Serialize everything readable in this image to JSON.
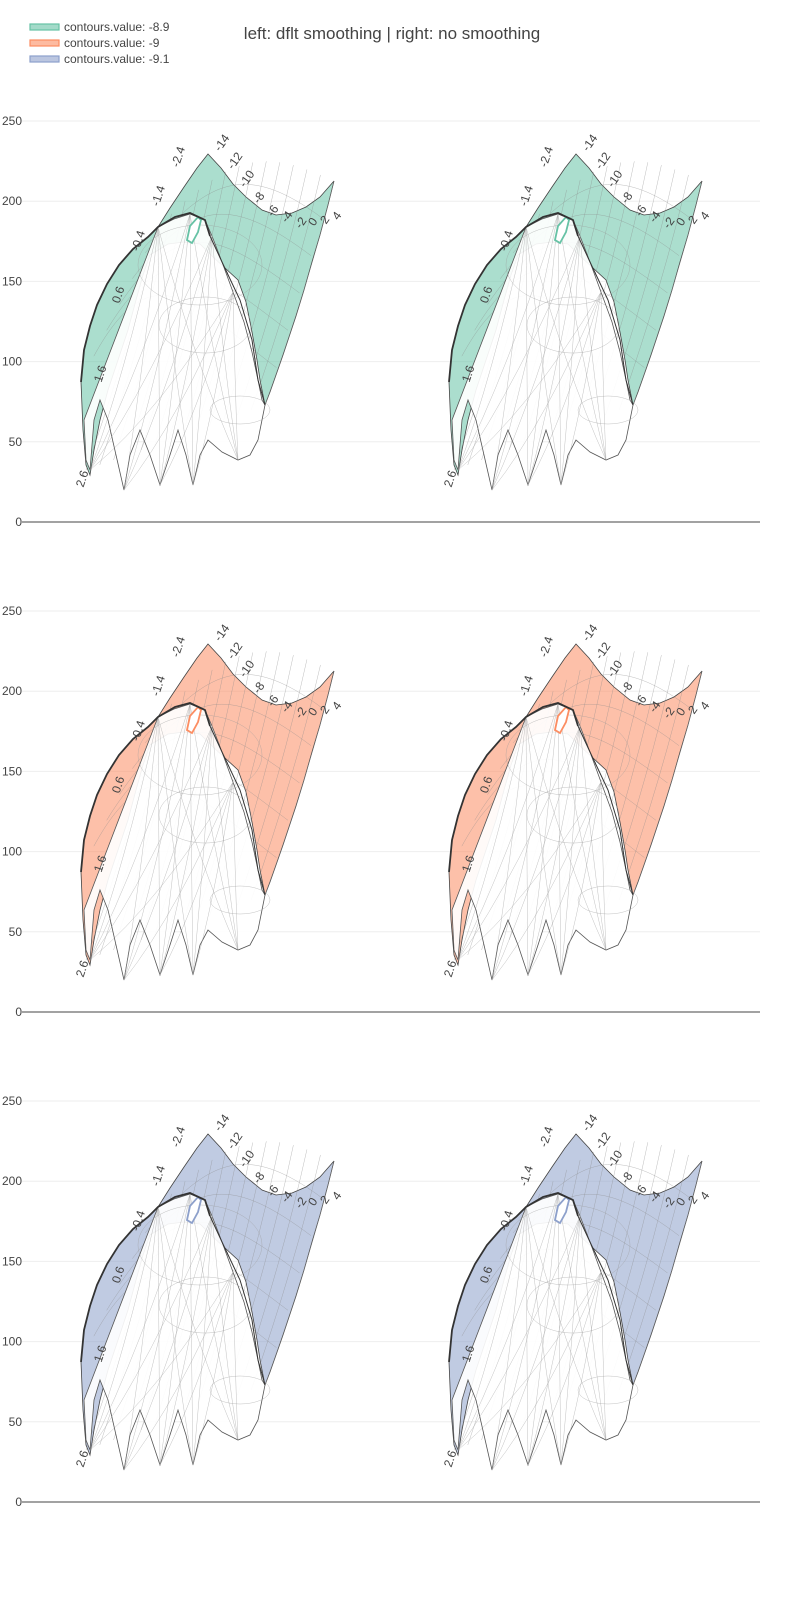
{
  "chart_data": {
    "type": "contour-carpet",
    "title": "left: dflt smoothing | right: no smoothing",
    "legend": {
      "placement": "top-left",
      "entries": [
        {
          "name": "contours.value: -8.9",
          "color": "#66c2a5"
        },
        {
          "name": "contours.value: -9",
          "color": "#fc8d62"
        },
        {
          "name": "contours.value: -9.1",
          "color": "#8da0cb"
        }
      ]
    },
    "grid": true,
    "yaxis": {
      "range": [
        0,
        250
      ],
      "ticks": [
        "0",
        "50",
        "100",
        "150",
        "200",
        "250"
      ]
    },
    "carpet_a_labels": [
      "2.6",
      "1.6",
      "0.6",
      "-0.4",
      "-1.4",
      "-2.4"
    ],
    "carpet_b_labels": [
      "-14",
      "-12",
      "-10",
      "-8",
      "-6",
      "-4",
      "-2",
      "0",
      "2",
      "4"
    ],
    "panels": [
      {
        "row": 1,
        "smoothing": "default",
        "contour_value": -8.9,
        "color": "#66c2a5"
      },
      {
        "row": 1,
        "smoothing": "none",
        "contour_value": -8.9,
        "color": "#66c2a5"
      },
      {
        "row": 2,
        "smoothing": "default",
        "contour_value": -9,
        "color": "#fc8d62"
      },
      {
        "row": 2,
        "smoothing": "none",
        "contour_value": -9,
        "color": "#fc8d62"
      },
      {
        "row": 3,
        "smoothing": "default",
        "contour_value": -9.1,
        "color": "#8da0cb"
      },
      {
        "row": 3,
        "smoothing": "none",
        "contour_value": -9.1,
        "color": "#8da0cb"
      }
    ]
  }
}
